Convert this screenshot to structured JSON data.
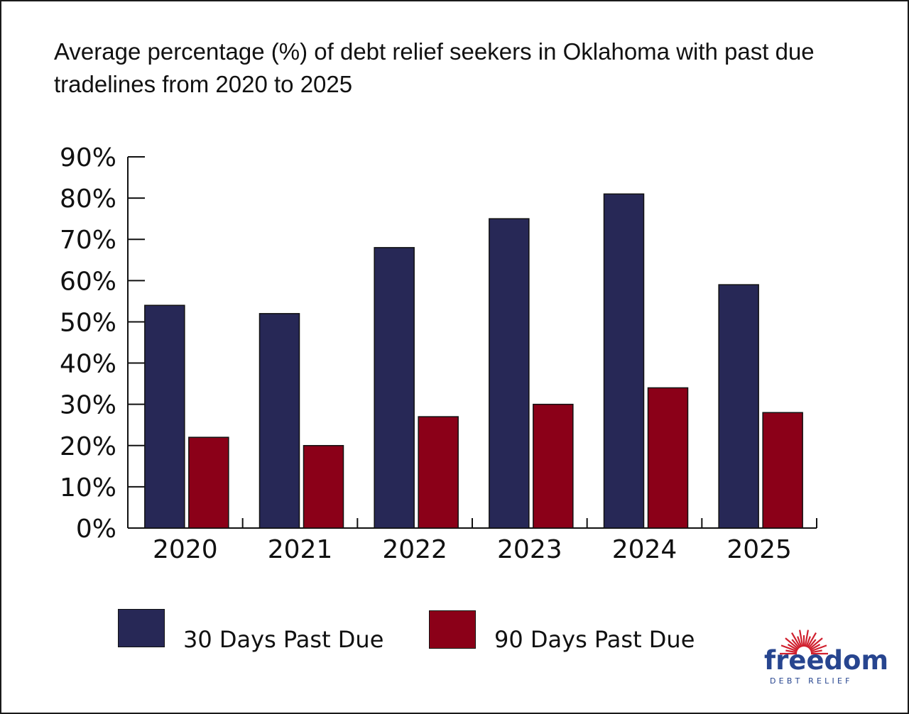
{
  "colors": {
    "series_30": "#272856",
    "series_90": "#8b0018",
    "axis": "#111111",
    "logo_blue": "#27458f",
    "logo_red": "#d0202e"
  },
  "chart_data": {
    "type": "bar",
    "title": "Average percentage (%) of debt relief seekers in Oklahoma with past due tradelines from 2020 to 2025",
    "categories": [
      "2020",
      "2021",
      "2022",
      "2023",
      "2024",
      "2025"
    ],
    "series": [
      {
        "name": "30 Days Past Due",
        "values": [
          54,
          52,
          68,
          75,
          81,
          59
        ]
      },
      {
        "name": "90 Days Past Due",
        "values": [
          22,
          20,
          27,
          30,
          34,
          28
        ]
      }
    ],
    "ylim": [
      0,
      90
    ],
    "yticks": [
      "0%",
      "10%",
      "20%",
      "30%",
      "40%",
      "50%",
      "60%",
      "70%",
      "80%",
      "90%"
    ],
    "grid": false,
    "legend_placement": "bottom-left"
  },
  "legend": {
    "series_30_label": "30 Days Past Due",
    "series_90_label": "90 Days Past Due"
  },
  "logo": {
    "word": "freedom",
    "sub": "DEBT RELIEF",
    "icon": "sunburst-icon"
  }
}
